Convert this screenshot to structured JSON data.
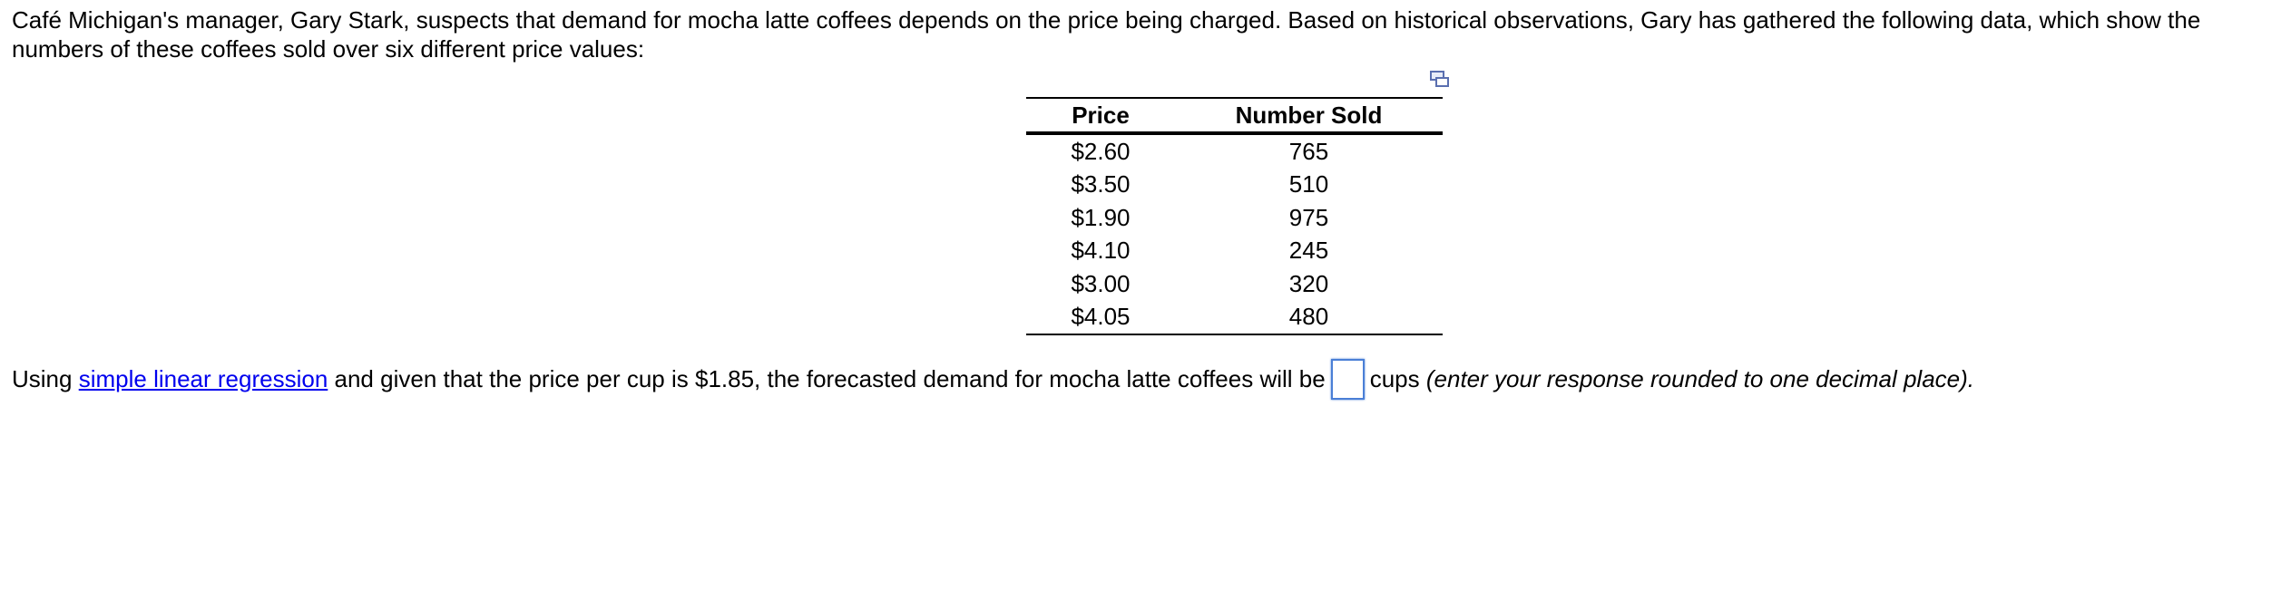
{
  "intro": "Café Michigan's manager, Gary Stark, suspects that demand for mocha latte coffees depends on the price being charged.  Based on historical observations, Gary has gathered the following data, which show the numbers of these coffees sold over six different price values:",
  "table": {
    "header": [
      "Price",
      "Number Sold"
    ],
    "rows": [
      [
        "$2.60",
        765
      ],
      [
        "$3.50",
        510
      ],
      [
        "$1.90",
        975
      ],
      [
        "$4.10",
        245
      ],
      [
        "$3.00",
        320
      ],
      [
        "$4.05",
        480
      ]
    ]
  },
  "question": {
    "prefix": "Using",
    "link": "simple linear regression",
    "middle": "and given that the price per cup is $1.85, the forecasted demand for mocha latte coffees will be",
    "suffix": "cups",
    "note": "(enter your response rounded to one decimal place)."
  }
}
